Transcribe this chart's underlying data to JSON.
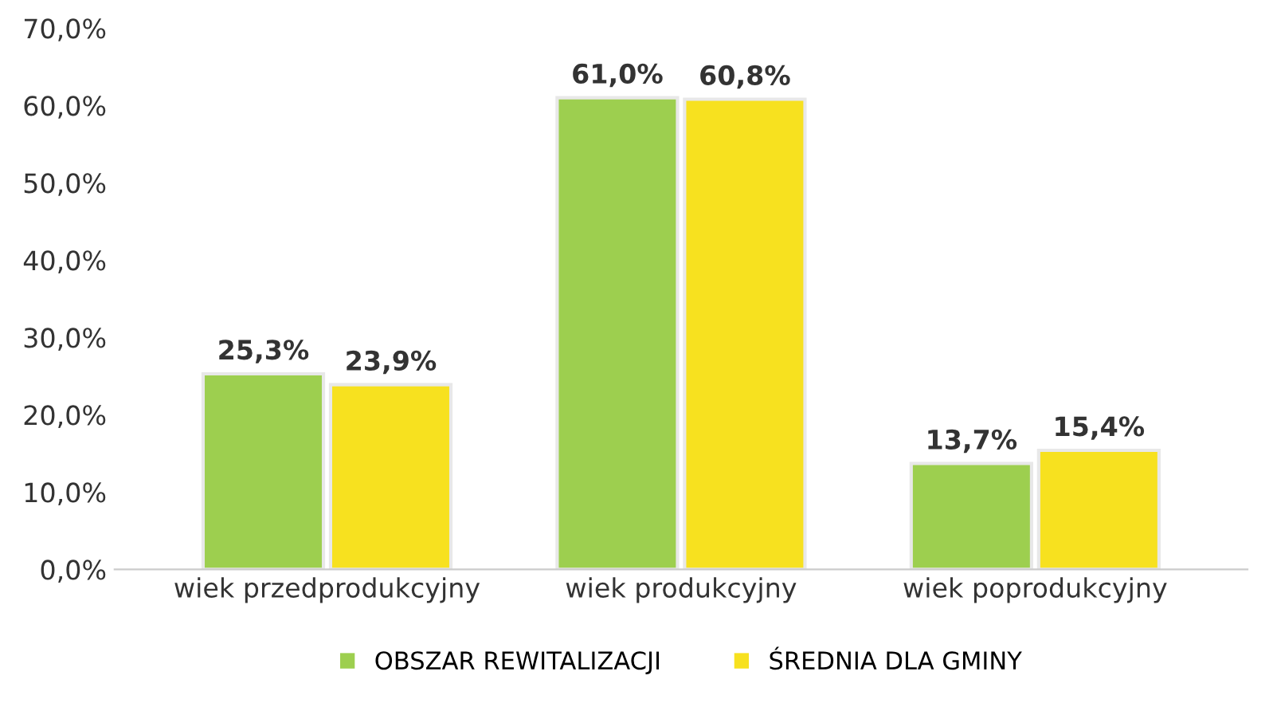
{
  "chart_data": {
    "type": "bar",
    "categories": [
      "wiek przedprodukcyjny",
      "wiek produkcyjny",
      "wiek poprodukcyjny"
    ],
    "series": [
      {
        "name": "OBSZAR REWITALIZACJI",
        "color": "#9dcf4f",
        "values": [
          25.3,
          61.0,
          13.7
        ],
        "value_labels": [
          "25,3%",
          "61,0%",
          "13,7%"
        ]
      },
      {
        "name": "ŚREDNIA DLA GMINY",
        "color": "#f7e11f",
        "values": [
          23.9,
          60.8,
          15.4
        ],
        "value_labels": [
          "23,9%",
          "60,8%",
          "15,4%"
        ]
      }
    ],
    "ylim": [
      0,
      70
    ],
    "yticks": [
      {
        "value": 0,
        "label": "0,0%"
      },
      {
        "value": 10,
        "label": "10,0%"
      },
      {
        "value": 20,
        "label": "20,0%"
      },
      {
        "value": 30,
        "label": "30,0%"
      },
      {
        "value": 40,
        "label": "40,0%"
      },
      {
        "value": 50,
        "label": "50,0%"
      },
      {
        "value": 60,
        "label": "60,0%"
      },
      {
        "value": 70,
        "label": "70,0%"
      }
    ],
    "grid": false,
    "legend": "bottom"
  }
}
